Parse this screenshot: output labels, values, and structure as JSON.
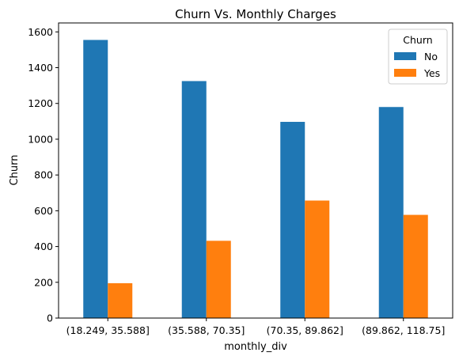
{
  "chart_data": {
    "type": "bar",
    "title": "Churn Vs. Monthly Charges",
    "xlabel": "monthly_div",
    "ylabel": "Churn",
    "categories": [
      "(18.249, 35.588]",
      "(35.588, 70.35]",
      "(70.35, 89.862]",
      "(89.862, 118.75]"
    ],
    "series": [
      {
        "name": "No",
        "values": [
          1555,
          1325,
          1097,
          1180
        ],
        "color": "#1f77b4"
      },
      {
        "name": "Yes",
        "values": [
          195,
          432,
          657,
          577
        ],
        "color": "#ff7f0e"
      }
    ],
    "ylim": [
      0,
      1650
    ],
    "yticks": [
      "0",
      "200",
      "400",
      "600",
      "800",
      "1000",
      "1200",
      "1400",
      "1600"
    ],
    "grid": false,
    "legend": {
      "title": "Churn",
      "placement": "top-right"
    }
  }
}
